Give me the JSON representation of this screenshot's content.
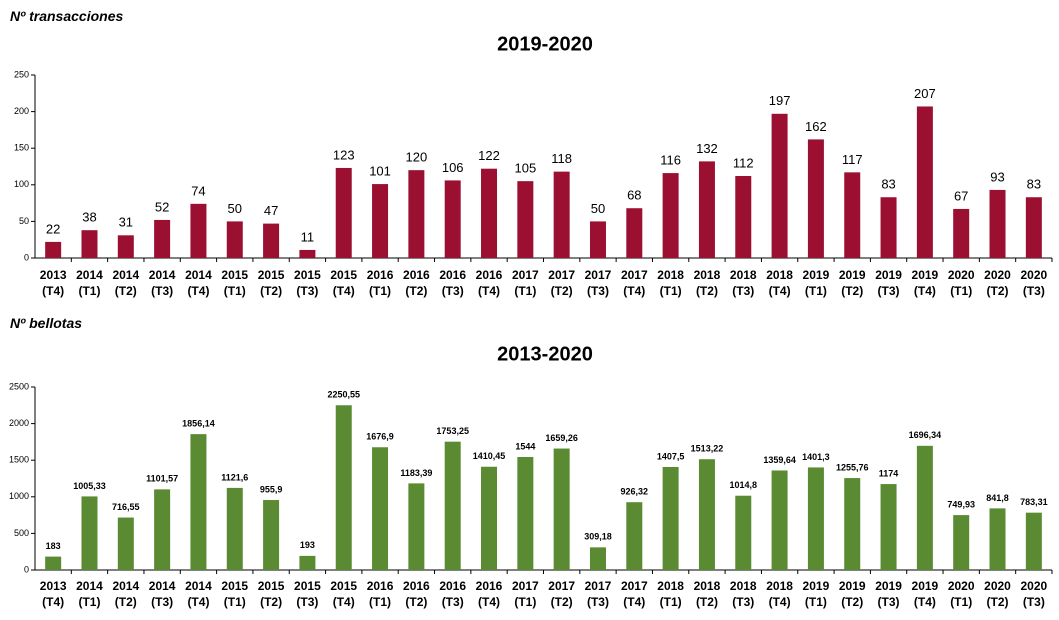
{
  "chart_data": [
    {
      "type": "bar",
      "annotation": "Nº transacciones",
      "title": "2019-2020",
      "color": "#9b1030",
      "categories": [
        "2013 (T4)",
        "2014 (T1)",
        "2014 (T2)",
        "2014 (T3)",
        "2014 (T4)",
        "2015 (T1)",
        "2015 (T2)",
        "2015 (T3)",
        "2015 (T4)",
        "2016 (T1)",
        "2016 (T2)",
        "2016 (T3)",
        "2016 (T4)",
        "2017 (T1)",
        "2017 (T2)",
        "2017 (T3)",
        "2017 (T4)",
        "2018 (T1)",
        "2018 (T2)",
        "2018 (T3)",
        "2018 (T4)",
        "2019 (T1)",
        "2019 (T2)",
        "2019 (T3)",
        "2019 (T4)",
        "2020 (T1)",
        "2020 (T2)",
        "2020 (T3)"
      ],
      "values": [
        22,
        38,
        31,
        52,
        74,
        50,
        47,
        11,
        123,
        101,
        120,
        106,
        122,
        105,
        118,
        50,
        68,
        116,
        132,
        112,
        197,
        162,
        117,
        83,
        207,
        67,
        93,
        83
      ],
      "ylim": [
        0,
        250
      ],
      "yticks": [
        0,
        50,
        100,
        150,
        200,
        250
      ],
      "grid": false
    },
    {
      "type": "bar",
      "annotation": "Nº bellotas",
      "title": "2013-2020",
      "color": "#5a8a32",
      "categories": [
        "2013 (T4)",
        "2014 (T1)",
        "2014 (T2)",
        "2014 (T3)",
        "2014 (T4)",
        "2015 (T1)",
        "2015 (T2)",
        "2015 (T3)",
        "2015 (T4)",
        "2016 (T1)",
        "2016 (T2)",
        "2016 (T3)",
        "2016 (T4)",
        "2017 (T1)",
        "2017 (T2)",
        "2017 (T3)",
        "2017 (T4)",
        "2018 (T1)",
        "2018 (T2)",
        "2018 (T3)",
        "2018 (T4)",
        "2019 (T1)",
        "2019 (T2)",
        "2019 (T3)",
        "2019 (T4)",
        "2020 (T1)",
        "2020 (T2)",
        "2020 (T3)"
      ],
      "values": [
        183,
        1005.33,
        716.55,
        1101.57,
        1856.14,
        1121.6,
        955.9,
        193,
        2250.55,
        1676.9,
        1183.39,
        1753.25,
        1410.45,
        1544,
        1659.26,
        309.18,
        926.32,
        1407.5,
        1513.22,
        1014.8,
        1359.64,
        1401.3,
        1255.76,
        1174,
        1696.34,
        749.93,
        841.8,
        783.31
      ],
      "value_labels": [
        "183",
        "1005,33",
        "716,55",
        "1101,57",
        "1856,14",
        "1121,6",
        "955,9",
        "193",
        "2250,55",
        "1676,9",
        "1183,39",
        "1753,25",
        "1410,45",
        "1544",
        "1659,26",
        "309,18",
        "926,32",
        "1407,5",
        "1513,22",
        "1014,8",
        "1359,64",
        "1401,3",
        "1255,76",
        "1174",
        "1696,34",
        "749,93",
        "841,8",
        "783,31"
      ],
      "ylim": [
        0,
        2500
      ],
      "yticks": [
        0,
        500,
        1000,
        1500,
        2000,
        2500
      ],
      "grid": false
    }
  ]
}
